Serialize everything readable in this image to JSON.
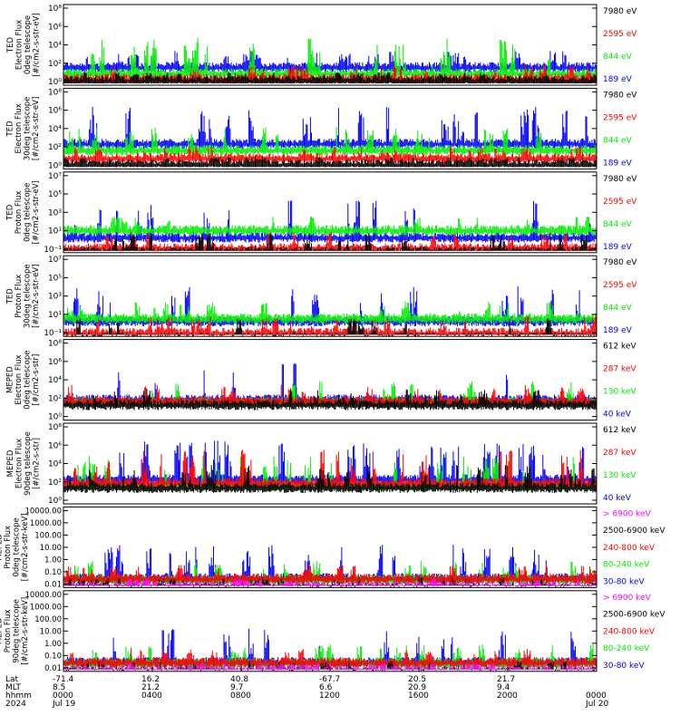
{
  "colors": {
    "blue": "#0000ff",
    "red": "#ff0000",
    "green": "#00ee00",
    "black": "#000000",
    "magenta": "#ff00ff"
  },
  "panels": [
    {
      "ylabel_lines": [
        "TED",
        "Electron Flux",
        "0deg telescope",
        "[#/cm2-s-str-eV]"
      ],
      "ticks": [
        "10⁸",
        "10⁶",
        "10⁴",
        "10²",
        "10⁰"
      ],
      "legend": [
        {
          "label": "7980 eV",
          "color": "black"
        },
        {
          "label": "2595 eV",
          "color": "red"
        },
        {
          "label": "844 eV",
          "color": "green"
        },
        {
          "label": "189 eV",
          "color": "blue"
        }
      ]
    },
    {
      "ylabel_lines": [
        "TED",
        "Electron Flux",
        "30deg telescope",
        "[#/cm2-s-str-eV]"
      ],
      "ticks": [
        "10⁸",
        "10⁶",
        "10⁴",
        "10²",
        "10⁰"
      ],
      "legend": [
        {
          "label": "7980 eV",
          "color": "black"
        },
        {
          "label": "2595 eV",
          "color": "red"
        },
        {
          "label": "844 eV",
          "color": "green"
        },
        {
          "label": "189 eV",
          "color": "blue"
        }
      ]
    },
    {
      "ylabel_lines": [
        "TED",
        "Proton Flux",
        "0deg telescope",
        "[#/cm2-s-str-eV]"
      ],
      "ticks": [
        "10⁷",
        "10⁵",
        "10³",
        "10¹",
        "10⁻¹"
      ],
      "legend": [
        {
          "label": "7980 eV",
          "color": "black"
        },
        {
          "label": "2595 eV",
          "color": "red"
        },
        {
          "label": "844 eV",
          "color": "green"
        },
        {
          "label": "189 eV",
          "color": "blue"
        }
      ]
    },
    {
      "ylabel_lines": [
        "TED",
        "Proton Flux",
        "30deg telescope",
        "[#/cm2-s-str-eV]"
      ],
      "ticks": [
        "10⁷",
        "10⁵",
        "10³",
        "10¹",
        "10⁻¹"
      ],
      "legend": [
        {
          "label": "7980 eV",
          "color": "black"
        },
        {
          "label": "2595 eV",
          "color": "red"
        },
        {
          "label": "844 eV",
          "color": "green"
        },
        {
          "label": "189 eV",
          "color": "blue"
        }
      ]
    },
    {
      "ylabel_lines": [
        "MEPED",
        "Electron Flux",
        "0deg telescope",
        "[#/cm2-s-str]"
      ],
      "ticks": [
        "10⁸",
        "10⁶",
        "10⁴",
        "10²",
        "10⁰"
      ],
      "legend": [
        {
          "label": "612 keV",
          "color": "black"
        },
        {
          "label": "287 keV",
          "color": "red"
        },
        {
          "label": "130 keV",
          "color": "green"
        },
        {
          "label": "40 keV",
          "color": "blue"
        }
      ]
    },
    {
      "ylabel_lines": [
        "MEPED",
        "Electron Flux",
        "90deg telescope",
        "[#/cm2-s-str]"
      ],
      "ticks": [
        "10⁸",
        "10⁶",
        "10⁴",
        "10²",
        "10⁰"
      ],
      "legend": [
        {
          "label": "612 keV",
          "color": "black"
        },
        {
          "label": "287 keV",
          "color": "red"
        },
        {
          "label": "130 keV",
          "color": "green"
        },
        {
          "label": "40 keV",
          "color": "blue"
        }
      ]
    },
    {
      "ylabel_lines": [
        "MEPED",
        "Proton Flux",
        "0deg telescope",
        "[#/cm2-s-str-keV]"
      ],
      "ticks": [
        "10000.00",
        "1000.00",
        "100.00",
        "10.00",
        "1.00",
        "0.10",
        "0.01"
      ],
      "legend": [
        {
          "label": "> 6900 keV",
          "color": "magenta"
        },
        {
          "label": "2500-6900 keV",
          "color": "black"
        },
        {
          "label": "240-800 keV",
          "color": "red"
        },
        {
          "label": "80-240 keV",
          "color": "green"
        },
        {
          "label": "30-80 keV",
          "color": "blue"
        }
      ]
    },
    {
      "ylabel_lines": [
        "MEPED",
        "Proton Flux",
        "90deg telescope",
        "[#/cm2-s-str-keV]"
      ],
      "ticks": [
        "10000.00",
        "1000.00",
        "100.00",
        "10.00",
        "1.00",
        "0.10",
        "0.01"
      ],
      "legend": [
        {
          "label": "> 6900 keV",
          "color": "magenta"
        },
        {
          "label": "2500-6900 keV",
          "color": "black"
        },
        {
          "label": "240-800 keV",
          "color": "red"
        },
        {
          "label": "80-240 keV",
          "color": "green"
        },
        {
          "label": "30-80 keV",
          "color": "blue"
        }
      ]
    }
  ],
  "xaxis": {
    "row_labels": [
      "Lat",
      "MLT",
      "hhmm",
      "2024"
    ],
    "columns": [
      {
        "lat": "-71.4",
        "mlt": "8.5",
        "hhmm": "0000",
        "date": "Jul 19"
      },
      {
        "lat": "16.2",
        "mlt": "21.2",
        "hhmm": "0400",
        "date": ""
      },
      {
        "lat": "40.8",
        "mlt": "9.7",
        "hhmm": "0800",
        "date": ""
      },
      {
        "lat": "-67.7",
        "mlt": "6.6",
        "hhmm": "1200",
        "date": ""
      },
      {
        "lat": "20.5",
        "mlt": "20.9",
        "hhmm": "1600",
        "date": ""
      },
      {
        "lat": "21.7",
        "mlt": "9.4",
        "hhmm": "2000",
        "date": ""
      },
      {
        "lat": "",
        "mlt": "",
        "hhmm": "0000",
        "date": "Jul 20"
      }
    ]
  },
  "chart_data": {
    "type": "line",
    "x_range": [
      "2024 Jul 19 0000",
      "2024 Jul 20 0000"
    ],
    "x_ticks": [
      "0000",
      "0400",
      "0800",
      "1200",
      "1600",
      "2000",
      "0000"
    ],
    "y_scale": "log",
    "panel_count": 8,
    "profiles": [
      {
        "levels": [
          -0.2,
          0.0,
          0.6,
          1.3
        ],
        "spike": [
          0.6,
          1.2,
          3.6,
          1.5
        ],
        "spikeFreq": 0.12
      },
      {
        "levels": [
          -0.2,
          0.5,
          1.4,
          2.1
        ],
        "spike": [
          0.5,
          1.0,
          2.2,
          3.8
        ],
        "spikeFreq": 0.12
      },
      {
        "levels": [
          -0.6,
          -0.2,
          1.8,
          1.0
        ],
        "spike": [
          1.8,
          1.5,
          1.2,
          3.8
        ],
        "spikeFreq": 0.08
      },
      {
        "levels": [
          -0.8,
          -0.3,
          1.3,
          1.0
        ],
        "spike": [
          1.8,
          1.5,
          1.6,
          3.6
        ],
        "spikeFreq": 0.08
      },
      {
        "levels": [
          1.0,
          1.4,
          1.3,
          1.6
        ],
        "spike": [
          1.5,
          1.5,
          2.0,
          3.8
        ],
        "spikeFreq": 0.06
      },
      {
        "levels": [
          1.1,
          1.6,
          1.3,
          2.0
        ],
        "spike": [
          2.2,
          3.4,
          3.0,
          4.0
        ],
        "spikeFreq": 0.14
      },
      {
        "levels": [
          -0.6,
          -0.7,
          0.3,
          0.2,
          0.35
        ],
        "spike": [
          0.6,
          0.8,
          1.2,
          1.8,
          3.4
        ],
        "spikeFreq": 0.1
      },
      {
        "levels": [
          -0.6,
          -0.7,
          0.3,
          0.2,
          0.35
        ],
        "spike": [
          0.6,
          0.8,
          1.2,
          1.8,
          3.4
        ],
        "spikeFreq": 0.1
      }
    ]
  }
}
